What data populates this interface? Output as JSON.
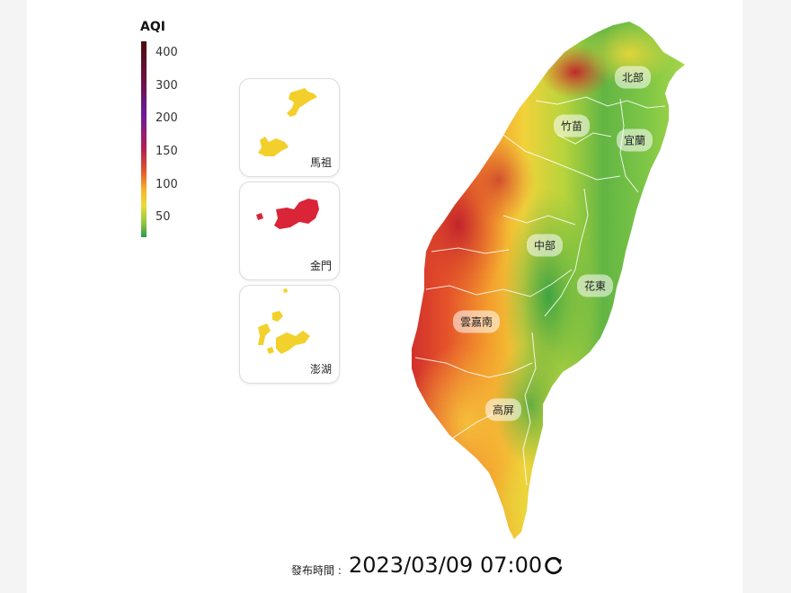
{
  "legend": {
    "title": "AQI",
    "ticks": [
      "400",
      "300",
      "200",
      "150",
      "100",
      "50"
    ]
  },
  "insets": [
    {
      "name": "馬祖",
      "color": "#f3cf2c"
    },
    {
      "name": "金門",
      "color": "#d92537"
    },
    {
      "name": "澎湖",
      "color": "#f3d12c"
    }
  ],
  "regions": [
    "北部",
    "竹苗",
    "宜蘭",
    "中部",
    "花東",
    "雲嘉南",
    "高屏"
  ],
  "footer": {
    "publish_label": "發布時間 :",
    "publish_time": "2023/03/09 07:00",
    "refresh_icon": "refresh-icon"
  }
}
